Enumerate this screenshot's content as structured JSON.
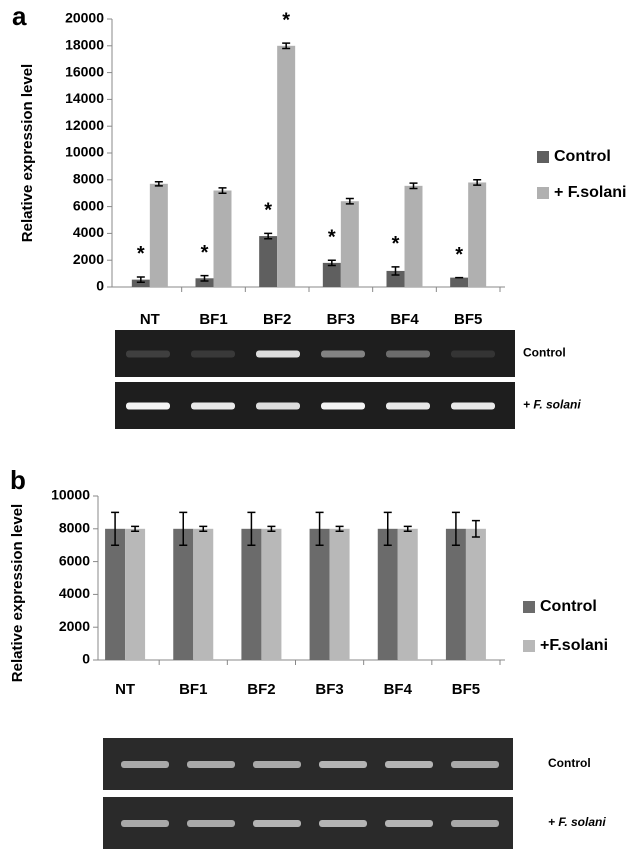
{
  "chart_data": [
    {
      "type": "bar",
      "panel_label": "a",
      "y_label": "Relative expression level",
      "categories": [
        "NT",
        "BF1",
        "BF2",
        "BF3",
        "BF4",
        "BF5"
      ],
      "series": [
        {
          "name": "Control",
          "color": "#5f5f5f",
          "values": [
            550,
            650,
            3800,
            1800,
            1200,
            700
          ],
          "errors": [
            200,
            200,
            200,
            200,
            300,
            0
          ],
          "annotations": [
            "*",
            "*",
            "*",
            "*",
            "*",
            "*"
          ]
        },
        {
          "name": "+ F.solani",
          "color": "#b0b0b0",
          "values": [
            7700,
            7200,
            18000,
            6400,
            7550,
            7800
          ],
          "errors": [
            150,
            200,
            200,
            200,
            200,
            200
          ],
          "annotations": [
            null,
            null,
            "*",
            null,
            null,
            null
          ]
        }
      ],
      "ylim": [
        0,
        20000
      ],
      "yticks": [
        0,
        2000,
        4000,
        6000,
        8000,
        10000,
        12000,
        14000,
        16000,
        18000,
        20000
      ],
      "gel_labels": [
        "Control",
        "+ F. solani"
      ]
    },
    {
      "type": "bar",
      "panel_label": "b",
      "y_label": "Relative expression level",
      "categories": [
        "NT",
        "BF1",
        "BF2",
        "BF3",
        "BF4",
        "BF5"
      ],
      "series": [
        {
          "name": "Control",
          "color": "#6b6b6b",
          "values": [
            8000,
            8000,
            8000,
            8000,
            8000,
            8000
          ],
          "errors": [
            1000,
            1000,
            1000,
            1000,
            1000,
            1000
          ]
        },
        {
          "name": "+F.solani",
          "color": "#b8b8b8",
          "values": [
            8000,
            8000,
            8000,
            8000,
            8000,
            8000
          ],
          "errors": [
            150,
            150,
            150,
            150,
            150,
            500
          ]
        }
      ],
      "ylim": [
        0,
        10000
      ],
      "yticks": [
        0,
        2000,
        4000,
        6000,
        8000,
        10000
      ],
      "gel_labels": [
        "Control",
        "+ F. solani"
      ]
    }
  ]
}
